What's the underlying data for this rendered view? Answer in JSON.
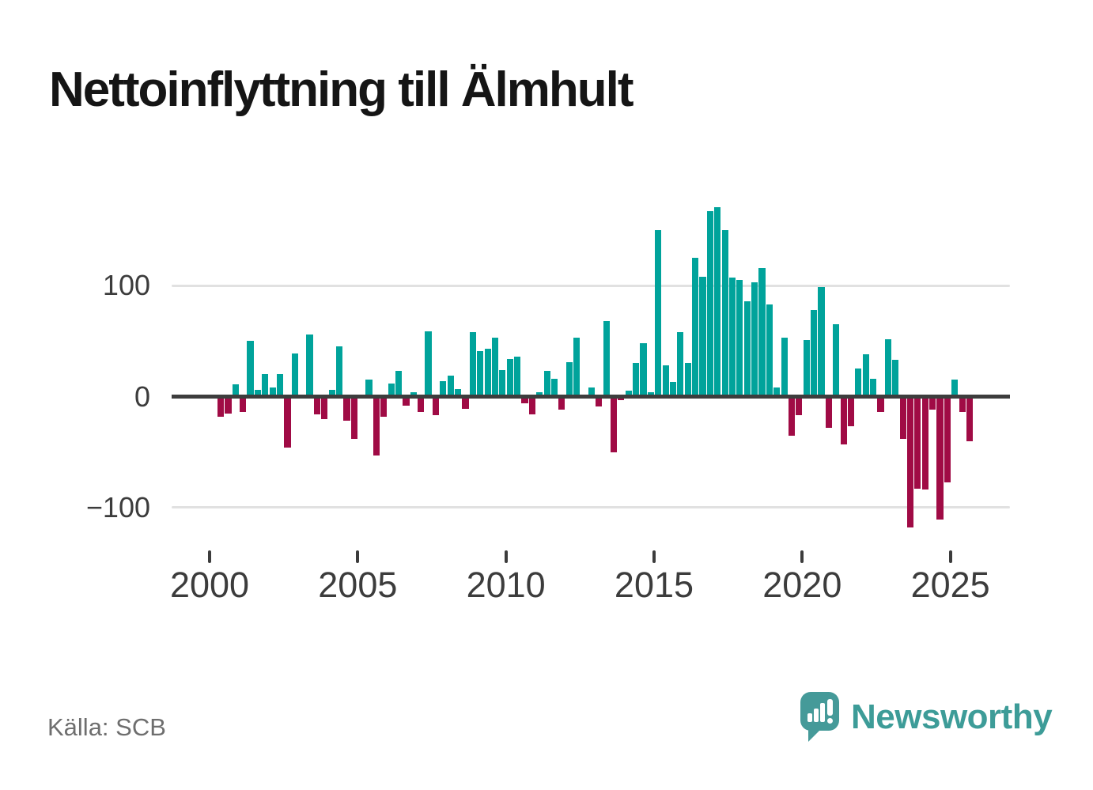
{
  "title": "Nettoinflyttning till Älmhult",
  "source": "Källa: SCB",
  "logo": {
    "wordmark": "Newsworthy"
  },
  "axes": {
    "y_ticks": [
      {
        "label": "100",
        "value": 100
      },
      {
        "label": "0",
        "value": 0
      },
      {
        "label": "−100",
        "value": -100
      }
    ],
    "x_ticks": [
      "2000",
      "2005",
      "2010",
      "2015",
      "2020",
      "2025"
    ],
    "gridline_values": [
      100,
      -100
    ]
  },
  "chart_data": {
    "type": "bar",
    "title": "Nettoinflyttning till Älmhult",
    "frequency": "quarterly",
    "start_period": "2000 Q1",
    "end_period": "2025 Q3",
    "ylim": [
      -130,
      185
    ],
    "grid": "horizontal gridlines at 100 and -100",
    "legend_position": "none",
    "colors": {
      "positive": "#00a39b",
      "negative": "#a00b45"
    },
    "x_tick_labels": [
      "2000",
      "2005",
      "2010",
      "2015",
      "2020",
      "2025"
    ],
    "y_tick_labels": [
      "100",
      "0",
      "−100"
    ],
    "values": [
      0,
      -18,
      -15,
      11,
      -14,
      50,
      6,
      20,
      8,
      20,
      -46,
      39,
      -2,
      56,
      -16,
      -20,
      6,
      45,
      -22,
      -38,
      -2,
      15,
      -53,
      -18,
      12,
      23,
      -8,
      4,
      -14,
      59,
      -17,
      14,
      19,
      7,
      -11,
      58,
      41,
      43,
      53,
      24,
      34,
      36,
      -6,
      -16,
      4,
      23,
      16,
      -12,
      31,
      53,
      0,
      8,
      -9,
      68,
      -50,
      -3,
      5,
      30,
      48,
      4,
      150,
      28,
      13,
      58,
      30,
      125,
      108,
      167,
      171,
      150,
      107,
      105,
      86,
      103,
      116,
      83,
      8,
      53,
      -35,
      -17,
      51,
      78,
      99,
      -28,
      65,
      -43,
      -27,
      25,
      38,
      16,
      -14,
      52,
      33,
      -38,
      -118,
      -83,
      -84,
      -12,
      -111,
      -77,
      15,
      -14,
      -40
    ]
  }
}
